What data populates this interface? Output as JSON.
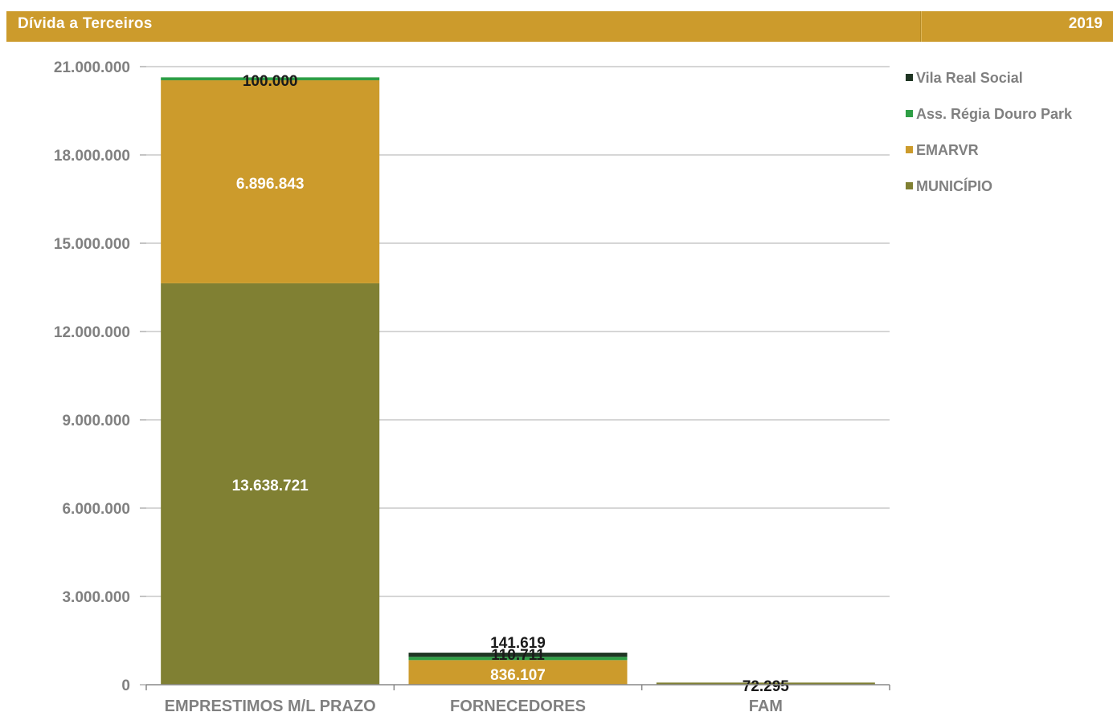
{
  "header": {
    "title": "Dívida a Terceiros",
    "year": "2019"
  },
  "colors": {
    "header": "#CC9B2C",
    "municipio": "#808033",
    "emarvr": "#CC9B2C",
    "regia": "#2E9E45",
    "vilareal": "#1F3523",
    "axis_text": "#808080",
    "gridline": "#C8C8C8"
  },
  "chart_data": {
    "type": "bar",
    "stacked": true,
    "categories": [
      "EMPRESTIMOS M/L PRAZO",
      "FORNECEDORES",
      "FAM"
    ],
    "series": [
      {
        "name": "MUNICÍPIO",
        "color": "#808033",
        "values": [
          13638721,
          0,
          72295
        ],
        "labels": [
          "13.638.721",
          "",
          "72.295"
        ]
      },
      {
        "name": "EMARVR",
        "color": "#CC9B2C",
        "values": [
          6896843,
          836107,
          0
        ],
        "labels": [
          "6.896.843",
          "836.107",
          ""
        ]
      },
      {
        "name": "Ass. Régia Douro Park",
        "color": "#2E9E45",
        "values": [
          100000,
          110711,
          0
        ],
        "labels": [
          "100.000",
          "110.711",
          ""
        ]
      },
      {
        "name": "Vila Real Social",
        "color": "#1F3523",
        "values": [
          0,
          141619,
          0
        ],
        "labels": [
          "",
          "141.619",
          ""
        ]
      }
    ],
    "ylim": [
      0,
      21000000
    ],
    "yticks": [
      0,
      3000000,
      6000000,
      9000000,
      12000000,
      15000000,
      18000000,
      21000000
    ],
    "ytick_labels": [
      "0",
      "3.000.000",
      "6.000.000",
      "9.000.000",
      "12.000.000",
      "15.000.000",
      "18.000.000",
      "21.000.000"
    ],
    "grid": true,
    "legend_position": "right",
    "legend_order": [
      "Vila Real Social",
      "Ass. Régia Douro Park",
      "EMARVR",
      "MUNICÍPIO"
    ]
  }
}
